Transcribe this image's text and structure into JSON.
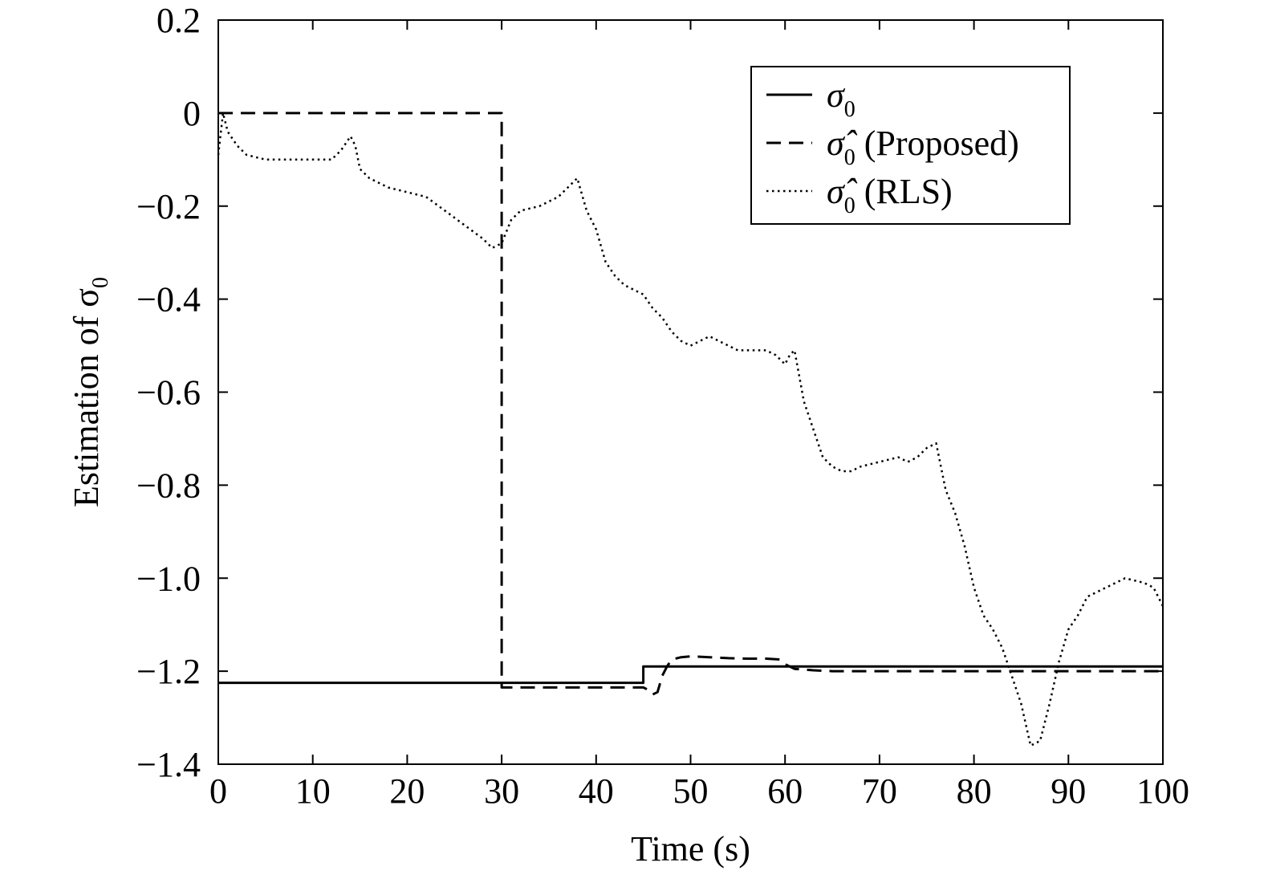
{
  "chart_data": {
    "type": "line",
    "xlabel": "Time (s)",
    "ylabel": "Estimation of σ",
    "ylabel_subscript": "0",
    "xlim": [
      0,
      100
    ],
    "ylim": [
      -1.4,
      0.2
    ],
    "xticks": [
      0,
      10,
      20,
      30,
      40,
      50,
      60,
      70,
      80,
      90,
      100
    ],
    "xtick_labels": [
      "0",
      "10",
      "20",
      "30",
      "40",
      "50",
      "60",
      "70",
      "80",
      "90",
      "100"
    ],
    "yticks": [
      0.2,
      0,
      -0.2,
      -0.4,
      -0.6,
      -0.8,
      -1.0,
      -1.2,
      -1.4
    ],
    "ytick_labels": [
      "0.2",
      "0",
      "−0.2",
      "−0.4",
      "−0.6",
      "−0.8",
      "−1.0",
      "−1.2",
      "−1.4"
    ],
    "grid": false,
    "legend_position": "top-right",
    "series": [
      {
        "name": "σ",
        "name_subscript": "0",
        "name_suffix": "",
        "style": "solid",
        "color": "#000000",
        "x": [
          0,
          45,
          45,
          100
        ],
        "y": [
          -1.225,
          -1.225,
          -1.19,
          -1.19
        ]
      },
      {
        "name": "σ̂",
        "name_subscript": "0",
        "name_suffix": " (Proposed)",
        "style": "dashed",
        "color": "#000000",
        "x": [
          0,
          30,
          30,
          45,
          45.5,
          46,
          46.5,
          47,
          47.5,
          48,
          49,
          50,
          52,
          54,
          56,
          58,
          59.5,
          60,
          61,
          63,
          65,
          100
        ],
        "y": [
          0,
          0,
          -1.235,
          -1.235,
          -1.24,
          -1.25,
          -1.245,
          -1.21,
          -1.19,
          -1.175,
          -1.17,
          -1.168,
          -1.17,
          -1.172,
          -1.173,
          -1.173,
          -1.175,
          -1.185,
          -1.195,
          -1.198,
          -1.2,
          -1.2
        ]
      },
      {
        "name": "σ̂",
        "name_subscript": "0",
        "name_suffix": " (RLS)",
        "style": "dotted",
        "color": "#000000",
        "x": [
          0,
          0.5,
          1,
          2,
          3,
          5,
          7,
          9,
          10,
          12,
          13,
          14,
          14.5,
          15,
          16,
          18,
          20,
          22,
          24,
          26,
          28,
          29,
          30,
          31,
          32,
          34,
          36,
          37,
          38,
          39,
          40,
          41,
          42,
          43,
          44,
          45,
          46,
          47,
          48,
          49,
          50,
          51,
          52,
          53,
          54,
          55,
          56,
          57,
          58,
          59,
          60,
          60.5,
          61,
          62,
          63,
          64,
          65,
          66,
          67,
          68,
          70,
          72,
          73,
          74,
          75,
          76,
          77,
          78,
          79,
          80,
          81,
          82,
          83,
          84,
          85,
          86,
          87,
          88,
          89,
          90,
          91,
          92,
          94,
          96,
          98,
          99,
          100
        ],
        "y": [
          -0.09,
          0.0,
          -0.04,
          -0.07,
          -0.09,
          -0.1,
          -0.1,
          -0.1,
          -0.1,
          -0.1,
          -0.08,
          -0.05,
          -0.07,
          -0.12,
          -0.14,
          -0.16,
          -0.17,
          -0.18,
          -0.21,
          -0.24,
          -0.27,
          -0.29,
          -0.28,
          -0.23,
          -0.21,
          -0.2,
          -0.18,
          -0.16,
          -0.14,
          -0.21,
          -0.25,
          -0.32,
          -0.35,
          -0.37,
          -0.38,
          -0.39,
          -0.42,
          -0.44,
          -0.47,
          -0.49,
          -0.5,
          -0.49,
          -0.48,
          -0.49,
          -0.5,
          -0.51,
          -0.51,
          -0.51,
          -0.51,
          -0.52,
          -0.54,
          -0.52,
          -0.51,
          -0.62,
          -0.68,
          -0.74,
          -0.76,
          -0.77,
          -0.77,
          -0.76,
          -0.75,
          -0.74,
          -0.75,
          -0.74,
          -0.72,
          -0.71,
          -0.81,
          -0.86,
          -0.93,
          -1.02,
          -1.08,
          -1.11,
          -1.15,
          -1.21,
          -1.27,
          -1.36,
          -1.35,
          -1.27,
          -1.18,
          -1.11,
          -1.08,
          -1.04,
          -1.02,
          -1.0,
          -1.01,
          -1.02,
          -1.06
        ]
      }
    ]
  }
}
